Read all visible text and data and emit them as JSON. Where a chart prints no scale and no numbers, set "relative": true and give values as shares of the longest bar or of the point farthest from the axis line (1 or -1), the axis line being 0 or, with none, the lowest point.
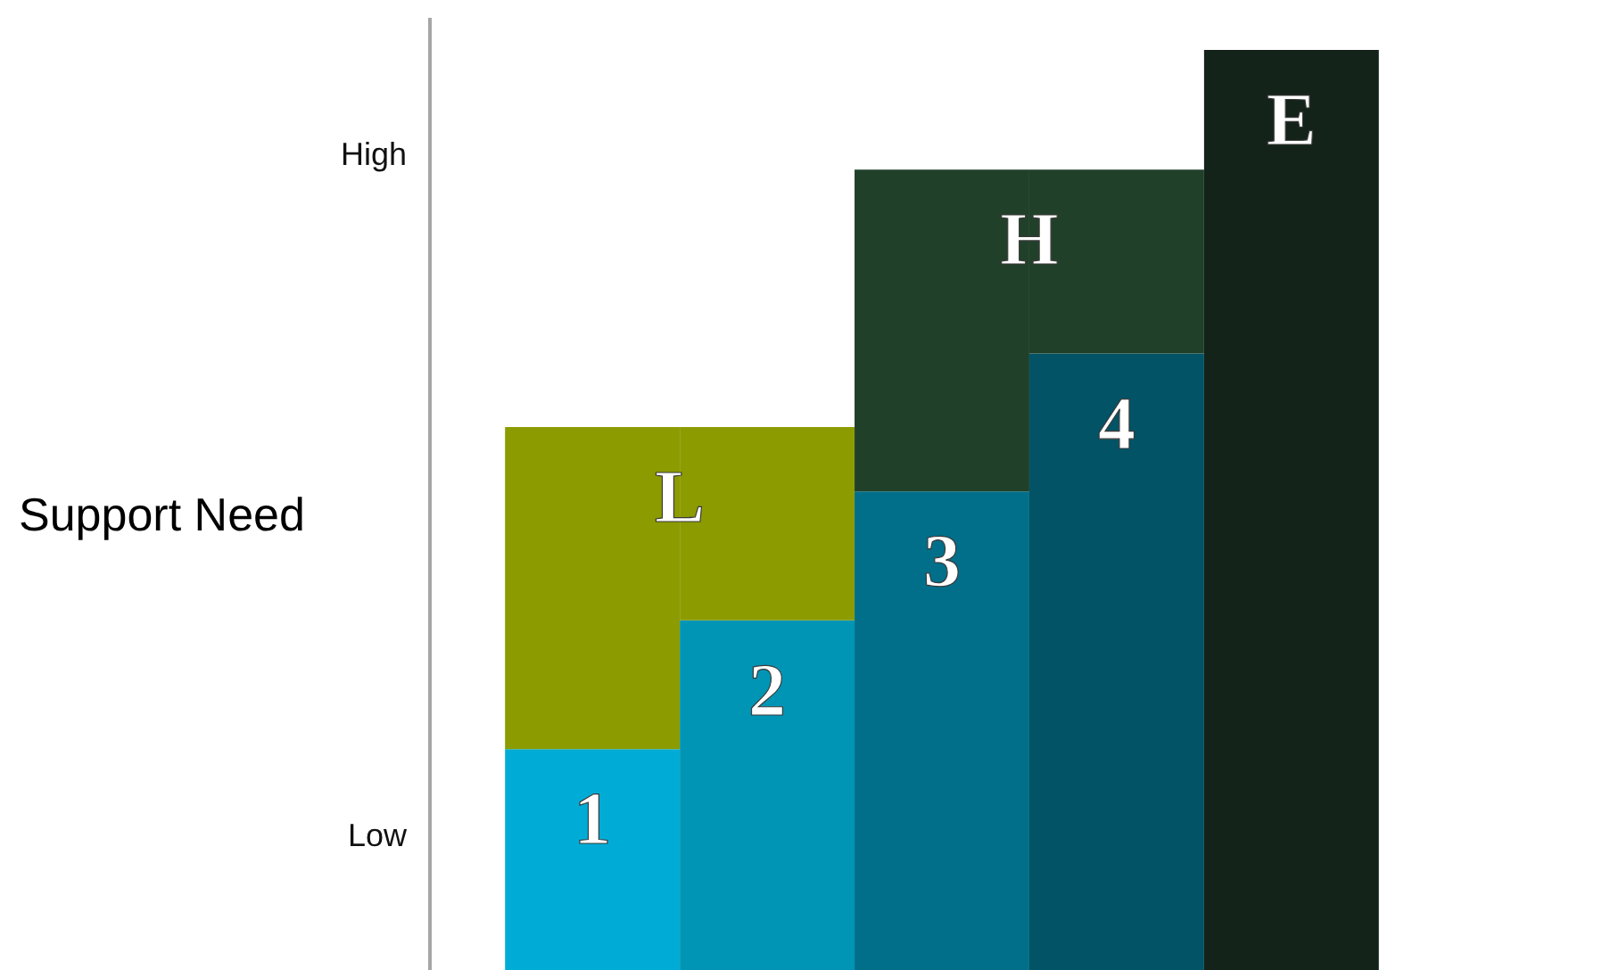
{
  "chart_data": {
    "type": "bar",
    "stacked": true,
    "relative": true,
    "ylabel": "Support Need",
    "categories": [
      null,
      null,
      null,
      null,
      null
    ],
    "annotations": [
      "High",
      "Low"
    ],
    "series": [
      {
        "name": "1",
        "color": "#00acd6",
        "values": [
          0.24,
          null,
          null,
          null,
          null
        ]
      },
      {
        "name": "2",
        "color": "#0095b5",
        "values": [
          null,
          0.38,
          null,
          null,
          null
        ]
      },
      {
        "name": "3",
        "color": "#026f8a",
        "values": [
          null,
          null,
          0.52,
          null,
          null
        ]
      },
      {
        "name": "4",
        "color": "#025366",
        "values": [
          null,
          null,
          null,
          0.67,
          null
        ]
      },
      {
        "name": "L",
        "color": "#8c9b00",
        "values": [
          0.35,
          0.21,
          null,
          null,
          null
        ]
      },
      {
        "name": "H",
        "color": "#21402a",
        "values": [
          null,
          null,
          0.35,
          0.2,
          null
        ]
      },
      {
        "name": "E",
        "color": "#13231a",
        "values": [
          null,
          null,
          null,
          null,
          1
        ]
      }
    ]
  }
}
